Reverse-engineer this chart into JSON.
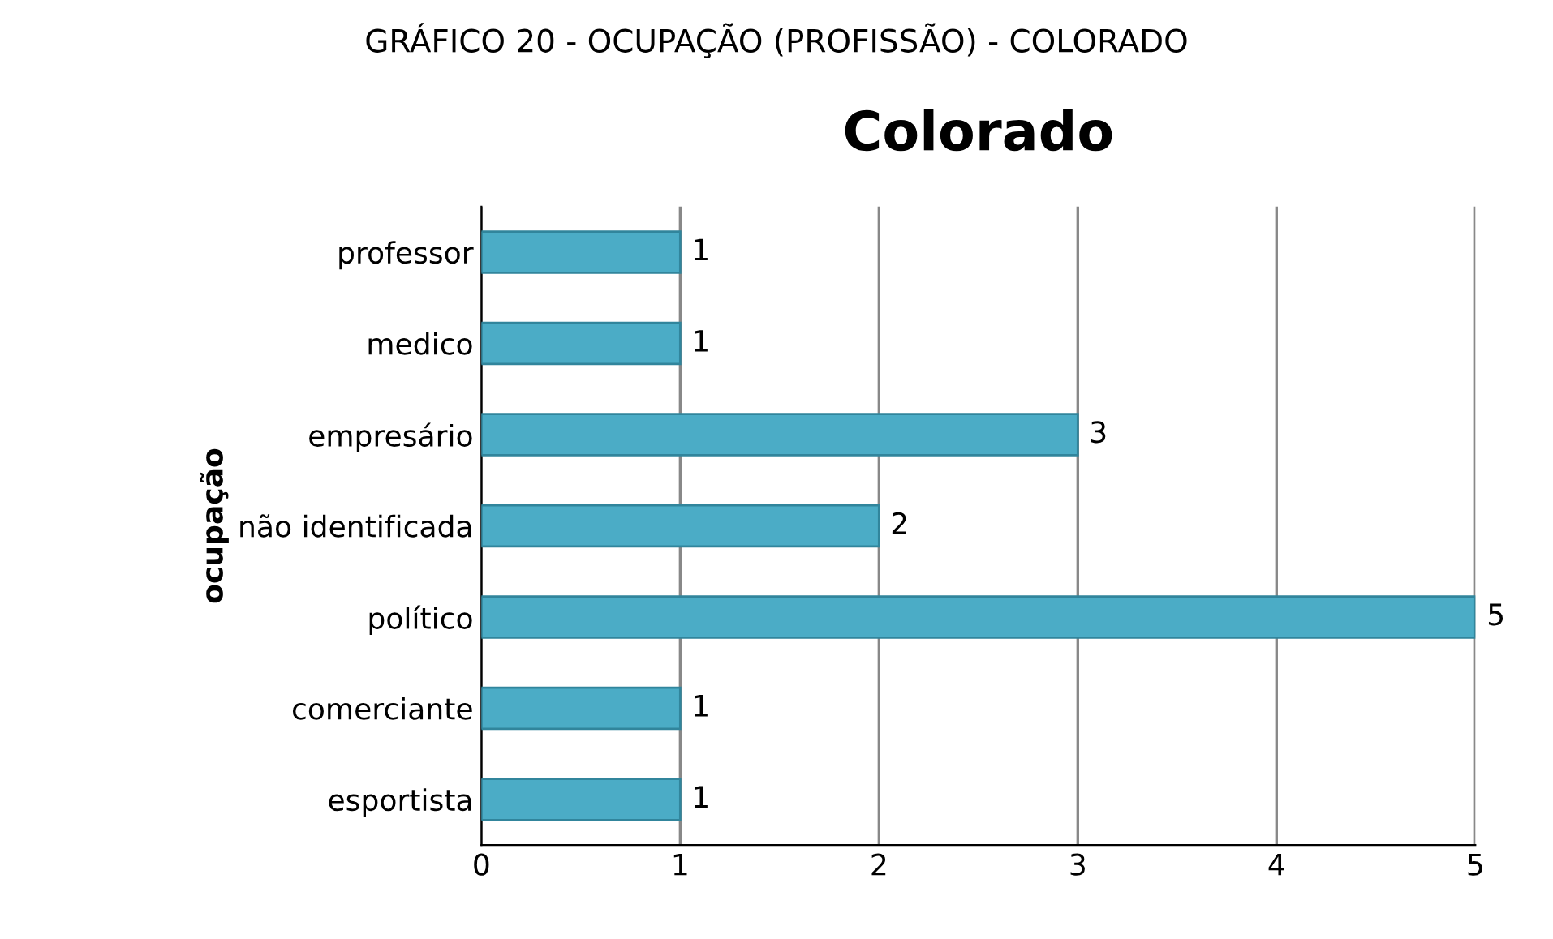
{
  "chart_data": {
    "type": "bar",
    "orientation": "horizontal",
    "title": "Colorado",
    "ylabel": "ocupação",
    "annotations": [
      "GRÁFICO 20 - OCUPAÇÃO (PROFISSÃO) - COLORADO"
    ],
    "categories": [
      "professor",
      "medico",
      "empresário",
      "não identificada",
      "político",
      "comerciante",
      "esportista"
    ],
    "values": [
      1,
      1,
      3,
      2,
      5,
      1,
      1
    ],
    "color": "#4bacc6",
    "xlim": [
      0,
      5
    ],
    "xticks": [
      0,
      1,
      2,
      3,
      4,
      5
    ],
    "grid": "x",
    "data_labels": true,
    "legend": false
  }
}
